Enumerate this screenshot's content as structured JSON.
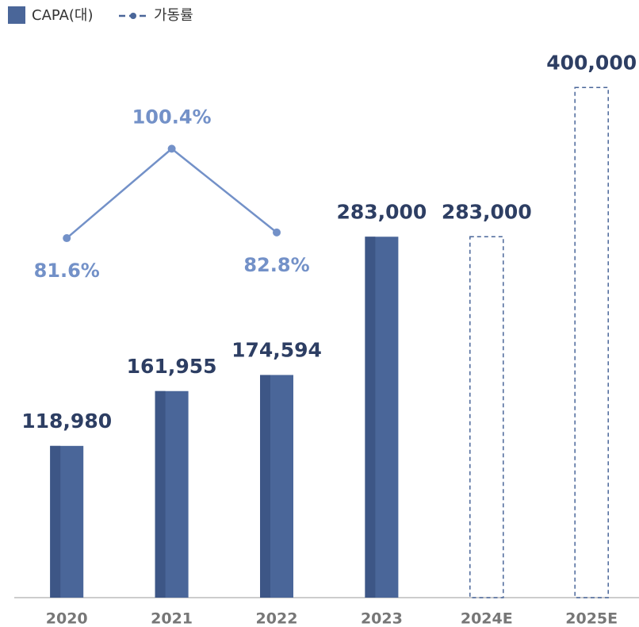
{
  "chart_data": {
    "type": "bar_line",
    "categories": [
      "2020",
      "2021",
      "2022",
      "2023",
      "2024E",
      "2025E"
    ],
    "series": [
      {
        "name": "CAPA(대)",
        "type": "bar",
        "color": "#4a6699",
        "values": [
          118980,
          161955,
          174594,
          283000,
          283000,
          400000
        ],
        "value_labels": [
          "118,980",
          "161,955",
          "174,594",
          "283,000",
          "283,000",
          "400,000"
        ],
        "dashed": [
          false,
          false,
          false,
          false,
          true,
          true
        ]
      },
      {
        "name": "가동률",
        "type": "line",
        "axis": "y2",
        "color": "#7391c8",
        "values": [
          81.6,
          100.4,
          82.8,
          null,
          null,
          null
        ],
        "value_labels": [
          "81.6%",
          "100.4%",
          "82.8%",
          null,
          null,
          null
        ]
      }
    ],
    "ylim": [
      0,
      440000
    ],
    "y2lim": [
      6,
      124
    ]
  }
}
